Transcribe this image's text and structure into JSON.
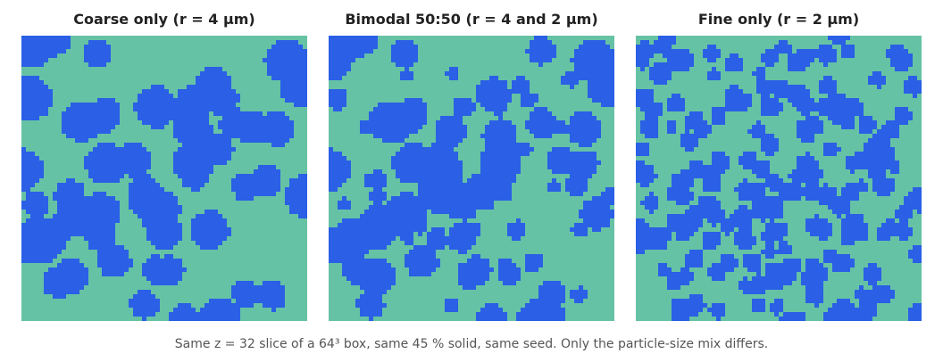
{
  "colors": {
    "solid": "#2a5fe6",
    "pore": "#66c2a5"
  },
  "chart_data": [
    {
      "type": "heatmap",
      "title": "Coarse only  (r = 4 µm)",
      "grid": [
        64,
        64
      ],
      "solid_fraction": 0.45,
      "particle_radius_um": [
        4
      ]
    },
    {
      "type": "heatmap",
      "title": "Bimodal 50:50  (r = 4 and 2 µm)",
      "grid": [
        64,
        64
      ],
      "solid_fraction": 0.45,
      "particle_radius_um": [
        4,
        2
      ]
    },
    {
      "type": "heatmap",
      "title": "Fine only  (r = 2 µm)",
      "grid": [
        64,
        64
      ],
      "solid_fraction": 0.45,
      "particle_radius_um": [
        2
      ]
    }
  ],
  "caption": "Same z = 32 slice of a 64³ box, same 45 % solid, same seed. Only the particle-size mix differs."
}
